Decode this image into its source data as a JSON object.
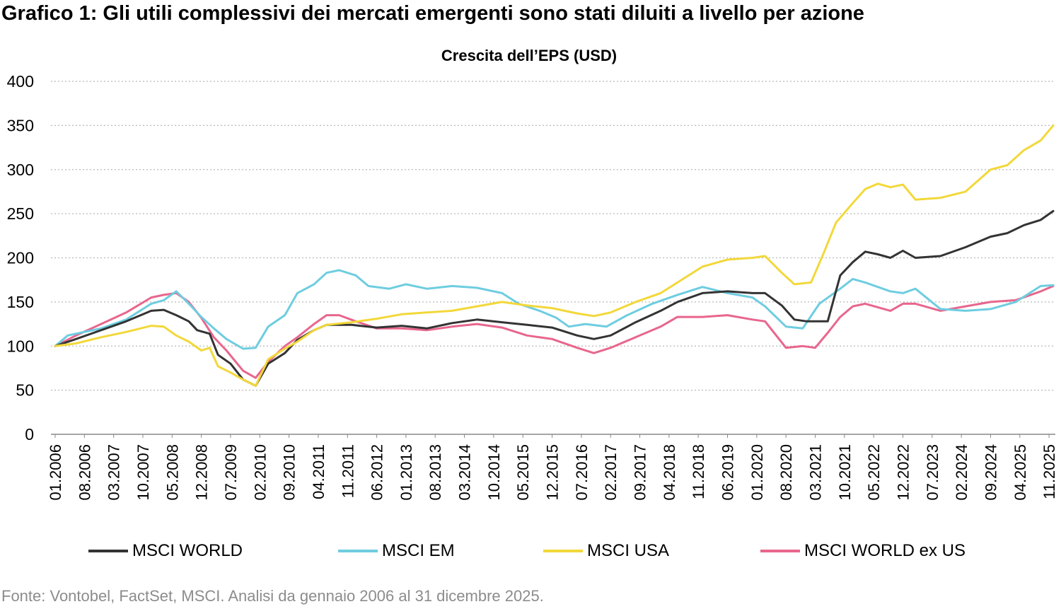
{
  "figure_title": "Grafico 1: Gli utili complessivi dei mercati emergenti sono stati diluiti a livello per azione",
  "source_note": "Fonte: Vontobel, FactSet, MSCI. Analisi da gennaio 2006 al 31 dicembre 2025.",
  "chart_data": {
    "type": "line",
    "title": "Crescita dell’EPS (USD)",
    "ylim": [
      0,
      400
    ],
    "yticks": [
      "0",
      "50",
      "100",
      "150",
      "200",
      "250",
      "300",
      "350",
      "400"
    ],
    "grid": "horizontal dotted",
    "legend_position": "bottom",
    "x_tick_labels": [
      "01.2006",
      "08.2006",
      "03.2007",
      "10.2007",
      "05.2008",
      "12.2008",
      "07.2009",
      "02.2010",
      "09.2010",
      "04.2011",
      "11.2011",
      "06.2012",
      "01.2013",
      "08.2013",
      "03.2014",
      "10.2014",
      "05.2015",
      "12.2015",
      "07.2016",
      "02.2017",
      "09.2017",
      "04.2018",
      "11.2018",
      "06.2019",
      "01.2020",
      "08.2020",
      "03.2021",
      "10.2021",
      "05.2022",
      "12.2022",
      "07.2023",
      "02.2024",
      "09.2024",
      "04.2025",
      "11.2025"
    ],
    "series": [
      {
        "name": "MSCI WORLD",
        "color": "#333333",
        "points": [
          [
            "2006-01",
            100
          ],
          [
            "2006-06",
            108
          ],
          [
            "2006-12",
            118
          ],
          [
            "2007-06",
            128
          ],
          [
            "2007-12",
            140
          ],
          [
            "2008-03",
            141
          ],
          [
            "2008-06",
            135
          ],
          [
            "2008-09",
            128
          ],
          [
            "2008-11",
            118
          ],
          [
            "2009-02",
            114
          ],
          [
            "2009-04",
            90
          ],
          [
            "2009-07",
            80
          ],
          [
            "2009-10",
            62
          ],
          [
            "2010-01",
            55
          ],
          [
            "2010-04",
            80
          ],
          [
            "2010-08",
            92
          ],
          [
            "2010-11",
            107
          ],
          [
            "2011-03",
            118
          ],
          [
            "2011-06",
            124
          ],
          [
            "2011-12",
            124
          ],
          [
            "2012-06",
            121
          ],
          [
            "2012-12",
            123
          ],
          [
            "2013-06",
            120
          ],
          [
            "2013-12",
            126
          ],
          [
            "2014-06",
            130
          ],
          [
            "2014-12",
            127
          ],
          [
            "2015-06",
            124
          ],
          [
            "2015-12",
            121
          ],
          [
            "2016-06",
            112
          ],
          [
            "2016-10",
            108
          ],
          [
            "2017-02",
            112
          ],
          [
            "2017-08",
            127
          ],
          [
            "2018-02",
            140
          ],
          [
            "2018-06",
            150
          ],
          [
            "2018-12",
            160
          ],
          [
            "2019-06",
            162
          ],
          [
            "2019-12",
            160
          ],
          [
            "2020-03",
            160
          ],
          [
            "2020-07",
            146
          ],
          [
            "2020-10",
            130
          ],
          [
            "2021-01",
            128
          ],
          [
            "2021-06",
            128
          ],
          [
            "2021-09",
            180
          ],
          [
            "2021-12",
            195
          ],
          [
            "2022-03",
            207
          ],
          [
            "2022-06",
            204
          ],
          [
            "2022-09",
            200
          ],
          [
            "2022-12",
            208
          ],
          [
            "2023-03",
            200
          ],
          [
            "2023-09",
            202
          ],
          [
            "2024-03",
            212
          ],
          [
            "2024-09",
            224
          ],
          [
            "2025-01",
            228
          ],
          [
            "2025-05",
            237
          ],
          [
            "2025-09",
            243
          ],
          [
            "2025-12",
            253
          ]
        ]
      },
      {
        "name": "MSCI EM",
        "color": "#6ecde0",
        "points": [
          [
            "2006-01",
            100
          ],
          [
            "2006-04",
            112
          ],
          [
            "2006-12",
            120
          ],
          [
            "2007-06",
            130
          ],
          [
            "2007-12",
            148
          ],
          [
            "2008-03",
            152
          ],
          [
            "2008-06",
            162
          ],
          [
            "2008-09",
            148
          ],
          [
            "2008-12",
            133
          ],
          [
            "2009-03",
            120
          ],
          [
            "2009-06",
            108
          ],
          [
            "2009-10",
            97
          ],
          [
            "2010-01",
            98
          ],
          [
            "2010-04",
            122
          ],
          [
            "2010-08",
            135
          ],
          [
            "2010-11",
            160
          ],
          [
            "2011-03",
            170
          ],
          [
            "2011-06",
            183
          ],
          [
            "2011-09",
            186
          ],
          [
            "2012-01",
            180
          ],
          [
            "2012-04",
            168
          ],
          [
            "2012-09",
            165
          ],
          [
            "2013-01",
            170
          ],
          [
            "2013-06",
            165
          ],
          [
            "2013-12",
            168
          ],
          [
            "2014-06",
            166
          ],
          [
            "2014-12",
            160
          ],
          [
            "2015-04",
            148
          ],
          [
            "2015-09",
            140
          ],
          [
            "2016-01",
            132
          ],
          [
            "2016-04",
            122
          ],
          [
            "2016-08",
            125
          ],
          [
            "2017-01",
            122
          ],
          [
            "2017-06",
            135
          ],
          [
            "2017-12",
            148
          ],
          [
            "2018-06",
            158
          ],
          [
            "2018-12",
            167
          ],
          [
            "2019-06",
            160
          ],
          [
            "2019-12",
            155
          ],
          [
            "2020-03",
            145
          ],
          [
            "2020-08",
            122
          ],
          [
            "2020-12",
            120
          ],
          [
            "2021-04",
            148
          ],
          [
            "2021-09",
            165
          ],
          [
            "2021-12",
            176
          ],
          [
            "2022-03",
            172
          ],
          [
            "2022-09",
            162
          ],
          [
            "2022-12",
            160
          ],
          [
            "2023-03",
            165
          ],
          [
            "2023-09",
            142
          ],
          [
            "2024-03",
            140
          ],
          [
            "2024-09",
            142
          ],
          [
            "2025-03",
            150
          ],
          [
            "2025-09",
            168
          ],
          [
            "2025-12",
            169
          ]
        ]
      },
      {
        "name": "MSCI USA",
        "color": "#f2d83a",
        "points": [
          [
            "2006-01",
            100
          ],
          [
            "2006-06",
            103
          ],
          [
            "2006-12",
            110
          ],
          [
            "2007-06",
            116
          ],
          [
            "2007-12",
            123
          ],
          [
            "2008-03",
            122
          ],
          [
            "2008-06",
            112
          ],
          [
            "2008-09",
            105
          ],
          [
            "2008-12",
            95
          ],
          [
            "2009-02",
            98
          ],
          [
            "2009-04",
            77
          ],
          [
            "2009-07",
            70
          ],
          [
            "2009-10",
            62
          ],
          [
            "2010-01",
            55
          ],
          [
            "2010-04",
            85
          ],
          [
            "2010-08",
            97
          ],
          [
            "2010-11",
            105
          ],
          [
            "2011-03",
            118
          ],
          [
            "2011-06",
            124
          ],
          [
            "2011-12",
            127
          ],
          [
            "2012-06",
            131
          ],
          [
            "2012-12",
            136
          ],
          [
            "2013-06",
            138
          ],
          [
            "2013-12",
            140
          ],
          [
            "2014-06",
            145
          ],
          [
            "2014-12",
            150
          ],
          [
            "2015-06",
            146
          ],
          [
            "2015-12",
            143
          ],
          [
            "2016-06",
            137
          ],
          [
            "2016-10",
            134
          ],
          [
            "2017-02",
            138
          ],
          [
            "2017-08",
            150
          ],
          [
            "2018-02",
            160
          ],
          [
            "2018-06",
            172
          ],
          [
            "2018-12",
            190
          ],
          [
            "2019-06",
            198
          ],
          [
            "2019-12",
            200
          ],
          [
            "2020-03",
            202
          ],
          [
            "2020-07",
            183
          ],
          [
            "2020-10",
            170
          ],
          [
            "2021-02",
            172
          ],
          [
            "2021-05",
            205
          ],
          [
            "2021-08",
            240
          ],
          [
            "2021-12",
            262
          ],
          [
            "2022-03",
            278
          ],
          [
            "2022-06",
            284
          ],
          [
            "2022-09",
            280
          ],
          [
            "2022-12",
            283
          ],
          [
            "2023-03",
            266
          ],
          [
            "2023-09",
            268
          ],
          [
            "2024-03",
            275
          ],
          [
            "2024-09",
            300
          ],
          [
            "2025-01",
            305
          ],
          [
            "2025-05",
            322
          ],
          [
            "2025-09",
            333
          ],
          [
            "2025-12",
            350
          ]
        ]
      },
      {
        "name": "MSCI WORLD ex US",
        "color": "#e8668d",
        "points": [
          [
            "2006-01",
            100
          ],
          [
            "2006-06",
            112
          ],
          [
            "2006-12",
            125
          ],
          [
            "2007-06",
            138
          ],
          [
            "2007-12",
            155
          ],
          [
            "2008-03",
            158
          ],
          [
            "2008-06",
            160
          ],
          [
            "2008-09",
            150
          ],
          [
            "2008-12",
            132
          ],
          [
            "2009-03",
            110
          ],
          [
            "2009-06",
            95
          ],
          [
            "2009-10",
            72
          ],
          [
            "2010-01",
            64
          ],
          [
            "2010-04",
            82
          ],
          [
            "2010-08",
            100
          ],
          [
            "2010-11",
            110
          ],
          [
            "2011-03",
            125
          ],
          [
            "2011-06",
            135
          ],
          [
            "2011-09",
            135
          ],
          [
            "2012-01",
            128
          ],
          [
            "2012-06",
            120
          ],
          [
            "2012-12",
            120
          ],
          [
            "2013-06",
            118
          ],
          [
            "2013-12",
            122
          ],
          [
            "2014-06",
            125
          ],
          [
            "2014-12",
            121
          ],
          [
            "2015-06",
            112
          ],
          [
            "2015-12",
            108
          ],
          [
            "2016-06",
            98
          ],
          [
            "2016-10",
            92
          ],
          [
            "2017-02",
            98
          ],
          [
            "2017-08",
            110
          ],
          [
            "2018-02",
            122
          ],
          [
            "2018-06",
            133
          ],
          [
            "2018-12",
            133
          ],
          [
            "2019-06",
            135
          ],
          [
            "2019-12",
            130
          ],
          [
            "2020-03",
            128
          ],
          [
            "2020-08",
            98
          ],
          [
            "2020-12",
            100
          ],
          [
            "2021-03",
            98
          ],
          [
            "2021-06",
            115
          ],
          [
            "2021-09",
            133
          ],
          [
            "2021-12",
            145
          ],
          [
            "2022-03",
            148
          ],
          [
            "2022-09",
            140
          ],
          [
            "2022-12",
            148
          ],
          [
            "2023-03",
            148
          ],
          [
            "2023-09",
            140
          ],
          [
            "2024-03",
            145
          ],
          [
            "2024-09",
            150
          ],
          [
            "2025-03",
            152
          ],
          [
            "2025-09",
            162
          ],
          [
            "2025-12",
            168
          ]
        ]
      }
    ]
  }
}
